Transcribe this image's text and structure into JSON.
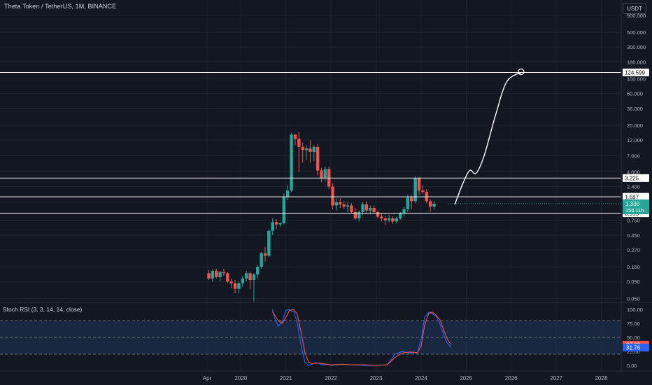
{
  "header": {
    "symbol_title": "Theta Token / TetherUS, 1M, BINANCE",
    "currency_button": "USDT"
  },
  "colors": {
    "background": "#131722",
    "up": "#26a69a",
    "down": "#ef5350",
    "axis_text": "#b2b5be",
    "hline": "#ffffff",
    "rsi_k": "#2962ff",
    "rsi_d": "#ef5350",
    "rsi_band": "#1c2d4b"
  },
  "chart_data": [
    {
      "type": "candlestick",
      "scale": "log",
      "ylim": [
        0.035,
        1200
      ],
      "price_axis_ticks": [
        "900.000",
        "500.000",
        "300.000",
        "180.000",
        "100.000",
        "60.000",
        "36.000",
        "20.000",
        "12.000",
        "7.000",
        "4.000",
        "2.400",
        "1.400",
        "0.750",
        "0.450",
        "0.270",
        "0.150",
        "0.090",
        "0.050"
      ],
      "price_axis_tick_values": [
        900,
        500,
        300,
        180,
        100,
        60,
        36,
        20,
        12,
        7,
        4,
        2.4,
        1.4,
        0.75,
        0.45,
        0.27,
        0.15,
        0.09,
        0.05
      ],
      "time_axis_ticks": [
        {
          "label": "Apr",
          "t": 2019.25
        },
        {
          "label": "2020",
          "t": 2020.0
        },
        {
          "label": "2021",
          "t": 2021.0
        },
        {
          "label": "2022",
          "t": 2022.0
        },
        {
          "label": "2023",
          "t": 2023.0
        },
        {
          "label": "2024",
          "t": 2024.0
        },
        {
          "label": "2025",
          "t": 2025.0
        },
        {
          "label": "2026",
          "t": 2026.0
        },
        {
          "label": "2027",
          "t": 2027.0
        },
        {
          "label": "2028",
          "t": 2028.0
        }
      ],
      "horizontal_levels": [
        {
          "label": "124.599",
          "value": 124.599
        },
        {
          "label": "3.225",
          "value": 3.225
        },
        {
          "label": "1.687",
          "value": 1.687
        },
        {
          "label": "0.955",
          "value": 0.955
        }
      ],
      "last_price": {
        "label": "1.330",
        "value": 1.33,
        "countdown": "15d 11h"
      },
      "candles": [
        [
          0.12,
          0.135,
          0.095,
          0.1
        ],
        [
          0.1,
          0.14,
          0.09,
          0.13
        ],
        [
          0.13,
          0.14,
          0.1,
          0.105
        ],
        [
          0.105,
          0.13,
          0.09,
          0.125
        ],
        [
          0.125,
          0.14,
          0.11,
          0.12
        ],
        [
          0.12,
          0.125,
          0.085,
          0.09
        ],
        [
          0.09,
          0.1,
          0.072,
          0.085
        ],
        [
          0.085,
          0.095,
          0.06,
          0.07
        ],
        [
          0.07,
          0.09,
          0.06,
          0.085
        ],
        [
          0.085,
          0.11,
          0.075,
          0.1
        ],
        [
          0.1,
          0.13,
          0.09,
          0.12
        ],
        [
          0.12,
          0.125,
          0.07,
          0.095
        ],
        [
          0.095,
          0.12,
          0.045,
          0.115
        ],
        [
          0.115,
          0.16,
          0.1,
          0.15
        ],
        [
          0.15,
          0.25,
          0.14,
          0.24
        ],
        [
          0.24,
          0.3,
          0.18,
          0.22
        ],
        [
          0.22,
          0.55,
          0.21,
          0.52
        ],
        [
          0.52,
          0.8,
          0.45,
          0.7
        ],
        [
          0.7,
          0.78,
          0.55,
          0.65
        ],
        [
          0.65,
          0.7,
          0.6,
          0.68
        ],
        [
          0.68,
          1.9,
          0.65,
          1.7
        ],
        [
          1.7,
          2.5,
          1.5,
          2.1
        ],
        [
          2.1,
          15.5,
          2.0,
          14.5
        ],
        [
          14.5,
          15.0,
          10.0,
          12.5
        ],
        [
          12.5,
          16.0,
          4.0,
          9.5
        ],
        [
          9.5,
          11.0,
          5.5,
          8.5
        ],
        [
          8.5,
          10.0,
          6.0,
          9.0
        ],
        [
          9.0,
          12.0,
          5.5,
          8.0
        ],
        [
          8.0,
          10.0,
          5.8,
          9.5
        ],
        [
          9.5,
          10.5,
          3.5,
          4.2
        ],
        [
          4.2,
          4.6,
          2.8,
          3.2
        ],
        [
          3.2,
          4.8,
          2.9,
          4.4
        ],
        [
          4.4,
          4.8,
          2.2,
          2.4
        ],
        [
          2.4,
          2.7,
          1.1,
          1.25
        ],
        [
          1.25,
          1.6,
          1.05,
          1.4
        ],
        [
          1.4,
          1.6,
          1.15,
          1.3
        ],
        [
          1.3,
          1.45,
          1.1,
          1.2
        ],
        [
          1.2,
          1.4,
          1.0,
          1.25
        ],
        [
          1.25,
          1.35,
          0.95,
          1.0
        ],
        [
          1.0,
          1.15,
          0.76,
          0.8
        ],
        [
          0.8,
          1.05,
          0.72,
          1.0
        ],
        [
          1.0,
          1.4,
          0.9,
          1.3
        ],
        [
          1.3,
          1.45,
          0.95,
          1.05
        ],
        [
          1.05,
          1.25,
          0.93,
          1.15
        ],
        [
          1.15,
          1.25,
          0.95,
          1.0
        ],
        [
          1.0,
          1.05,
          0.8,
          0.85
        ],
        [
          0.85,
          0.95,
          0.72,
          0.8
        ],
        [
          0.8,
          0.87,
          0.64,
          0.75
        ],
        [
          0.75,
          0.9,
          0.7,
          0.8
        ],
        [
          0.8,
          0.86,
          0.66,
          0.72
        ],
        [
          0.72,
          0.85,
          0.68,
          0.8
        ],
        [
          0.8,
          1.0,
          0.76,
          0.95
        ],
        [
          0.95,
          1.2,
          0.85,
          1.1
        ],
        [
          1.1,
          1.8,
          1.0,
          1.65
        ],
        [
          1.65,
          1.8,
          1.1,
          1.45
        ],
        [
          1.45,
          3.4,
          1.35,
          3.2
        ],
        [
          3.2,
          3.4,
          1.8,
          2.1
        ],
        [
          2.1,
          2.5,
          1.85,
          2.0
        ],
        [
          2.0,
          2.2,
          1.35,
          1.45
        ],
        [
          1.45,
          1.55,
          1.0,
          1.2
        ],
        [
          1.2,
          1.45,
          1.1,
          1.33
        ]
      ],
      "projection_path_values": [
        [
          2024.75,
          1.3
        ],
        [
          2024.92,
          2.6
        ],
        [
          2025.08,
          4.2
        ],
        [
          2025.22,
          3.8
        ],
        [
          2025.4,
          7.0
        ],
        [
          2025.65,
          28
        ],
        [
          2025.9,
          90
        ],
        [
          2026.22,
          124.6
        ]
      ]
    },
    {
      "type": "line",
      "title": "Stoch RSI (3, 3, 14, 14, close)",
      "ylim": [
        -5,
        105
      ],
      "y_ticks": [
        "100.00",
        "75.00",
        "50.00",
        "25.00",
        "0.00"
      ],
      "y_tick_values": [
        100,
        75,
        50,
        25,
        0
      ],
      "band": [
        20,
        80
      ],
      "last_values": {
        "k": "37.03",
        "d": "31.76"
      },
      "series": [
        {
          "key": "k",
          "x": [
            2020.7,
            2020.75,
            2020.83,
            2020.92,
            2021.0,
            2021.08,
            2021.17,
            2021.25,
            2021.33,
            2021.42,
            2021.5,
            2021.58,
            2021.67,
            2021.75,
            2021.83,
            2021.92,
            2022.0,
            2022.25,
            2022.5,
            2022.75,
            2023.0,
            2023.25,
            2023.42,
            2023.58,
            2023.75,
            2023.83,
            2023.92,
            2024.0,
            2024.08,
            2024.17,
            2024.25,
            2024.33,
            2024.42,
            2024.5,
            2024.58,
            2024.67
          ],
          "y": [
            100,
            84,
            70,
            78,
            98,
            100,
            96,
            78,
            38,
            6,
            0,
            2,
            5,
            3,
            1,
            2,
            0,
            2,
            1,
            0,
            0,
            1,
            20,
            25,
            22,
            24,
            22,
            46,
            86,
            95,
            92,
            88,
            74,
            55,
            40,
            32
          ]
        },
        {
          "key": "d",
          "x": [
            2020.7,
            2020.75,
            2020.83,
            2020.92,
            2021.0,
            2021.08,
            2021.17,
            2021.25,
            2021.33,
            2021.42,
            2021.5,
            2021.58,
            2021.67,
            2021.75,
            2021.83,
            2021.92,
            2022.0,
            2022.25,
            2022.5,
            2022.75,
            2023.0,
            2023.25,
            2023.42,
            2023.58,
            2023.75,
            2023.83,
            2023.92,
            2024.0,
            2024.08,
            2024.17,
            2024.25,
            2024.33,
            2024.42,
            2024.5,
            2024.58,
            2024.67
          ],
          "y": [
            96,
            90,
            80,
            75,
            86,
            98,
            100,
            92,
            62,
            24,
            6,
            3,
            4,
            4,
            3,
            2,
            1,
            2,
            1,
            1,
            0,
            1,
            14,
            22,
            24,
            23,
            23,
            34,
            72,
            93,
            95,
            90,
            81,
            64,
            47,
            37
          ]
        }
      ]
    }
  ]
}
